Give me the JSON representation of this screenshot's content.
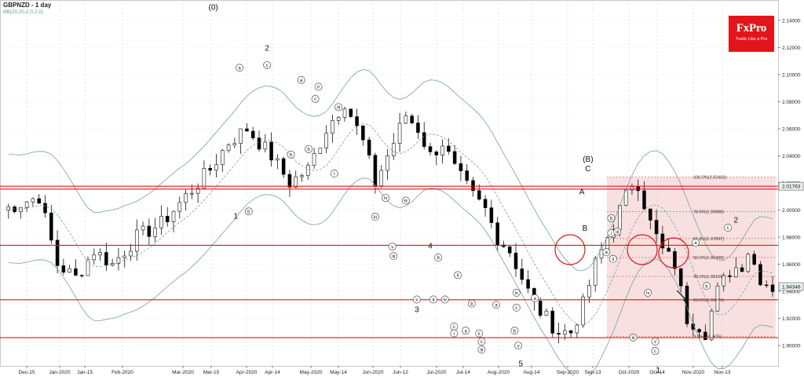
{
  "header": {
    "symbol_title": "GBPNZD - 1 day",
    "indicator": "BB(20,20,2,0,2,0)"
  },
  "logo": {
    "brand": "FxPro",
    "tagline": "Trade Like a Pro"
  },
  "colors": {
    "level_line": "#e3151a",
    "fib_zone": "#f7d6d6",
    "bands": "#6ea3a0",
    "candle_up": "#ffffff",
    "candle_down": "#000000",
    "last_price_bg": "#e8f0f0"
  },
  "chart_data": {
    "type": "candlestick",
    "title": "GBPNZD - 1 day",
    "ylim": [
      1.885,
      2.155
    ],
    "y_ticks": [
      "2.14000",
      "2.12000",
      "2.10000",
      "2.08000",
      "2.06000",
      "2.04000",
      "2.02000",
      "2.00000",
      "1.98000",
      "1.96000",
      "1.94000",
      "1.92000",
      "1.90000"
    ],
    "x_ticks": [
      "Dec-15",
      "Jan-2020",
      "Jan-15",
      "Feb-2020",
      "Mar-2020",
      "Mar-15",
      "Apr-2020",
      "Apr-14",
      "May-2020",
      "May-14",
      "Jun-2020",
      "Jun-12",
      "Jul-2020",
      "Jul-14",
      "Aug-2020",
      "Aug-14",
      "Sep-2020",
      "Sep-13",
      "Oct-2020",
      "Oct-14",
      "Nov-2020",
      "Nov-13"
    ],
    "price_markers": [
      {
        "label": "2.01763",
        "value": 2.0176
      },
      {
        "label": "1.94346",
        "value": 1.9435
      }
    ],
    "horizontal_levels": [
      2.0176,
      2.0155,
      1.974,
      1.9338,
      1.9058
    ],
    "fibonacci": [
      {
        "label": "100.0%(2.02423)",
        "value": 2.02423
      },
      {
        "label": "78.6%(1.99888)",
        "value": 1.99888
      },
      {
        "label": "61.8%(1.97897)",
        "value": 1.97897
      },
      {
        "label": "50.0%(1.96499)",
        "value": 1.96499
      },
      {
        "label": "38.2%(1.95101)",
        "value": 1.95101
      },
      {
        "label": "23.6%(1.93371)",
        "value": 1.93371
      },
      {
        "label": "0.0%(1.90675)",
        "value": 1.90675
      }
    ],
    "wave_labels": [
      {
        "text": "(0)",
        "x": 34.5,
        "y": 2.15,
        "style": "plain"
      },
      {
        "text": "2",
        "x": 43.3,
        "y": 2.12,
        "style": "plain"
      },
      {
        "text": "1",
        "x": 38.2,
        "y": 1.996,
        "style": "plain"
      },
      {
        "text": "4",
        "x": 70.0,
        "y": 1.974,
        "style": "plain"
      },
      {
        "text": "3",
        "x": 67.8,
        "y": 1.927,
        "style": "plain"
      },
      {
        "text": "5",
        "x": 84.8,
        "y": 1.887,
        "style": "plain"
      },
      {
        "text": "(B)",
        "x": 95.8,
        "y": 2.038,
        "style": "plain"
      },
      {
        "text": "C",
        "x": 95.8,
        "y": 2.031,
        "style": "plain"
      },
      {
        "text": "A",
        "x": 94.8,
        "y": 2.014,
        "style": "plain"
      },
      {
        "text": "B",
        "x": 95.3,
        "y": 1.987,
        "style": "plain"
      },
      {
        "text": "1",
        "x": 107.3,
        "y": 1.882,
        "style": "plain"
      },
      {
        "text": "2",
        "x": 120.0,
        "y": 1.993,
        "style": "plain"
      },
      {
        "text": "a",
        "x": 38.8,
        "y": 2.105,
        "style": "circle"
      },
      {
        "text": "b",
        "x": 40.3,
        "y": 1.999,
        "style": "circle"
      },
      {
        "text": "c",
        "x": 43.3,
        "y": 2.107,
        "style": "circle"
      },
      {
        "text": "a",
        "x": 48.9,
        "y": 2.096,
        "style": "circle"
      },
      {
        "text": "b",
        "x": 47.2,
        "y": 2.041,
        "style": "circle"
      },
      {
        "text": "c",
        "x": 51.2,
        "y": 2.082,
        "style": "circle"
      },
      {
        "text": "ii",
        "x": 51.7,
        "y": 2.091,
        "style": "circle"
      },
      {
        "text": "b",
        "x": 50.1,
        "y": 2.045,
        "style": "circle"
      },
      {
        "text": "iii",
        "x": 55.0,
        "y": 2.076,
        "style": "circle"
      },
      {
        "text": "i",
        "x": 54.3,
        "y": 2.027,
        "style": "circle"
      },
      {
        "text": "iv",
        "x": 62.7,
        "y": 2.009,
        "style": "circle"
      },
      {
        "text": "iv",
        "x": 66.0,
        "y": 2.007,
        "style": "circle"
      },
      {
        "text": "iii",
        "x": 61.0,
        "y": 1.995,
        "style": "circle"
      },
      {
        "text": "v",
        "x": 63.8,
        "y": 1.973,
        "style": "circle"
      },
      {
        "text": "iii",
        "x": 64.0,
        "y": 1.966,
        "style": "circle"
      },
      {
        "text": "b",
        "x": 71.3,
        "y": 1.965,
        "style": "circle"
      },
      {
        "text": "ii",
        "x": 74.5,
        "y": 1.952,
        "style": "circle"
      },
      {
        "text": "v",
        "x": 67.8,
        "y": 1.934,
        "style": "circle"
      },
      {
        "text": "a",
        "x": 70.5,
        "y": 1.934,
        "style": "circle"
      },
      {
        "text": "iv",
        "x": 72.4,
        "y": 1.934,
        "style": "circle"
      },
      {
        "text": "b",
        "x": 76.8,
        "y": 1.931,
        "style": "circle"
      },
      {
        "text": "iv",
        "x": 84.1,
        "y": 1.939,
        "style": "circle"
      },
      {
        "text": "a",
        "x": 80.8,
        "y": 1.93,
        "style": "circle"
      },
      {
        "text": "c",
        "x": 84.1,
        "y": 1.928,
        "style": "circle"
      },
      {
        "text": "a",
        "x": 87.1,
        "y": 1.935,
        "style": "circle"
      },
      {
        "text": "c",
        "x": 73.9,
        "y": 1.914,
        "style": "circle"
      },
      {
        "text": "i",
        "x": 73.9,
        "y": 1.909,
        "style": "circle"
      },
      {
        "text": "a",
        "x": 75.8,
        "y": 1.911,
        "style": "circle"
      },
      {
        "text": "ii",
        "x": 78.0,
        "y": 1.909,
        "style": "circle"
      },
      {
        "text": "b",
        "x": 83.8,
        "y": 1.911,
        "style": "circle"
      },
      {
        "text": "c",
        "x": 78.4,
        "y": 1.903,
        "style": "circle"
      },
      {
        "text": "iii",
        "x": 78.4,
        "y": 1.897,
        "style": "circle"
      },
      {
        "text": "v",
        "x": 84.4,
        "y": 1.9,
        "style": "circle"
      },
      {
        "text": "b",
        "x": 99.6,
        "y": 1.994,
        "style": "circle"
      },
      {
        "text": "i",
        "x": 99.6,
        "y": 1.983,
        "style": "circle"
      },
      {
        "text": "iii",
        "x": 100.6,
        "y": 1.984,
        "style": "circle"
      },
      {
        "text": "a",
        "x": 98.8,
        "y": 1.969,
        "style": "circle"
      },
      {
        "text": "ii",
        "x": 99.9,
        "y": 1.964,
        "style": "circle"
      },
      {
        "text": "iv",
        "x": 105.6,
        "y": 1.939,
        "style": "circle"
      },
      {
        "text": "iii",
        "x": 103.2,
        "y": 1.906,
        "style": "circle"
      },
      {
        "text": "v",
        "x": 106.8,
        "y": 1.903,
        "style": "circle"
      },
      {
        "text": "c",
        "x": 106.8,
        "y": 1.896,
        "style": "circle"
      },
      {
        "text": "a",
        "x": 113.4,
        "y": 1.976,
        "style": "circle"
      },
      {
        "text": "b",
        "x": 115.2,
        "y": 1.944,
        "style": "circle"
      },
      {
        "text": "c",
        "x": 118.7,
        "y": 1.987,
        "style": "circle"
      }
    ]
  }
}
